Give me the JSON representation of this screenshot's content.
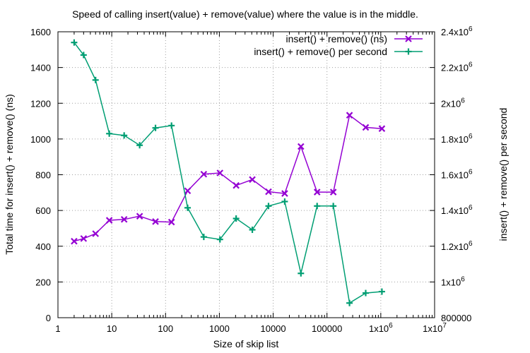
{
  "chart_data": {
    "type": "line",
    "title": "Speed of calling insert(value) + remove(value) where the value is in the middle.",
    "xlabel": "Size of skip list",
    "ylabel": "Total time for insert() + remove() (ns)",
    "y2label": "insert() + remove() per second",
    "x_scale": "log",
    "xlim": [
      1,
      10000000
    ],
    "ylim": [
      0,
      1600
    ],
    "y2lim": [
      800000,
      2400000
    ],
    "grid": true,
    "legend_position": "top-right",
    "x_ticks": [
      {
        "value": 1,
        "label": "1"
      },
      {
        "value": 10,
        "label": "10"
      },
      {
        "value": 100,
        "label": "100"
      },
      {
        "value": 1000,
        "label": "1000"
      },
      {
        "value": 10000,
        "label": "10000"
      },
      {
        "value": 100000,
        "label": "100000"
      },
      {
        "value": 1000000,
        "label": "1x10",
        "sup": "6"
      },
      {
        "value": 10000000,
        "label": "1x10",
        "sup": "7"
      }
    ],
    "y_ticks": [
      {
        "value": 0,
        "label": "0"
      },
      {
        "value": 200,
        "label": "200"
      },
      {
        "value": 400,
        "label": "400"
      },
      {
        "value": 600,
        "label": "600"
      },
      {
        "value": 800,
        "label": "800"
      },
      {
        "value": 1000,
        "label": "1000"
      },
      {
        "value": 1200,
        "label": "1200"
      },
      {
        "value": 1400,
        "label": "1400"
      },
      {
        "value": 1600,
        "label": "1600"
      }
    ],
    "y2_ticks": [
      {
        "value": 800000,
        "label": "800000"
      },
      {
        "value": 1000000,
        "label": "1x10",
        "sup": "6"
      },
      {
        "value": 1200000,
        "label": "1.2x10",
        "sup": "6"
      },
      {
        "value": 1400000,
        "label": "1.4x10",
        "sup": "6"
      },
      {
        "value": 1600000,
        "label": "1.6x10",
        "sup": "6"
      },
      {
        "value": 1800000,
        "label": "1.8x10",
        "sup": "6"
      },
      {
        "value": 2000000,
        "label": "2x10",
        "sup": "6"
      },
      {
        "value": 2200000,
        "label": "2.2x10",
        "sup": "6"
      },
      {
        "value": 2400000,
        "label": "2.4x10",
        "sup": "6"
      }
    ],
    "x": [
      2,
      3,
      5,
      9,
      17,
      33,
      65,
      129,
      257,
      513,
      1025,
      2049,
      4097,
      8193,
      16385,
      32769,
      65537,
      131073,
      262145,
      524289,
      1048577
    ],
    "series": [
      {
        "name": "insert() + remove() (ns)",
        "axis": "y1",
        "color": "#9400d3",
        "marker": "x",
        "values": [
          428,
          443,
          470,
          545,
          550,
          568,
          538,
          535,
          710,
          803,
          810,
          740,
          773,
          705,
          695,
          958,
          703,
          703,
          1133,
          1065,
          1058
        ]
      },
      {
        "name": "insert() + remove() per second",
        "axis": "y2",
        "color": "#009e73",
        "marker": "+",
        "values": [
          2340000,
          2270000,
          2130000,
          1830000,
          1820000,
          1765000,
          1862000,
          1875000,
          1415000,
          1252000,
          1238000,
          1355000,
          1292000,
          1425000,
          1450000,
          1048000,
          1425000,
          1425000,
          882000,
          938000,
          946000
        ]
      }
    ]
  }
}
